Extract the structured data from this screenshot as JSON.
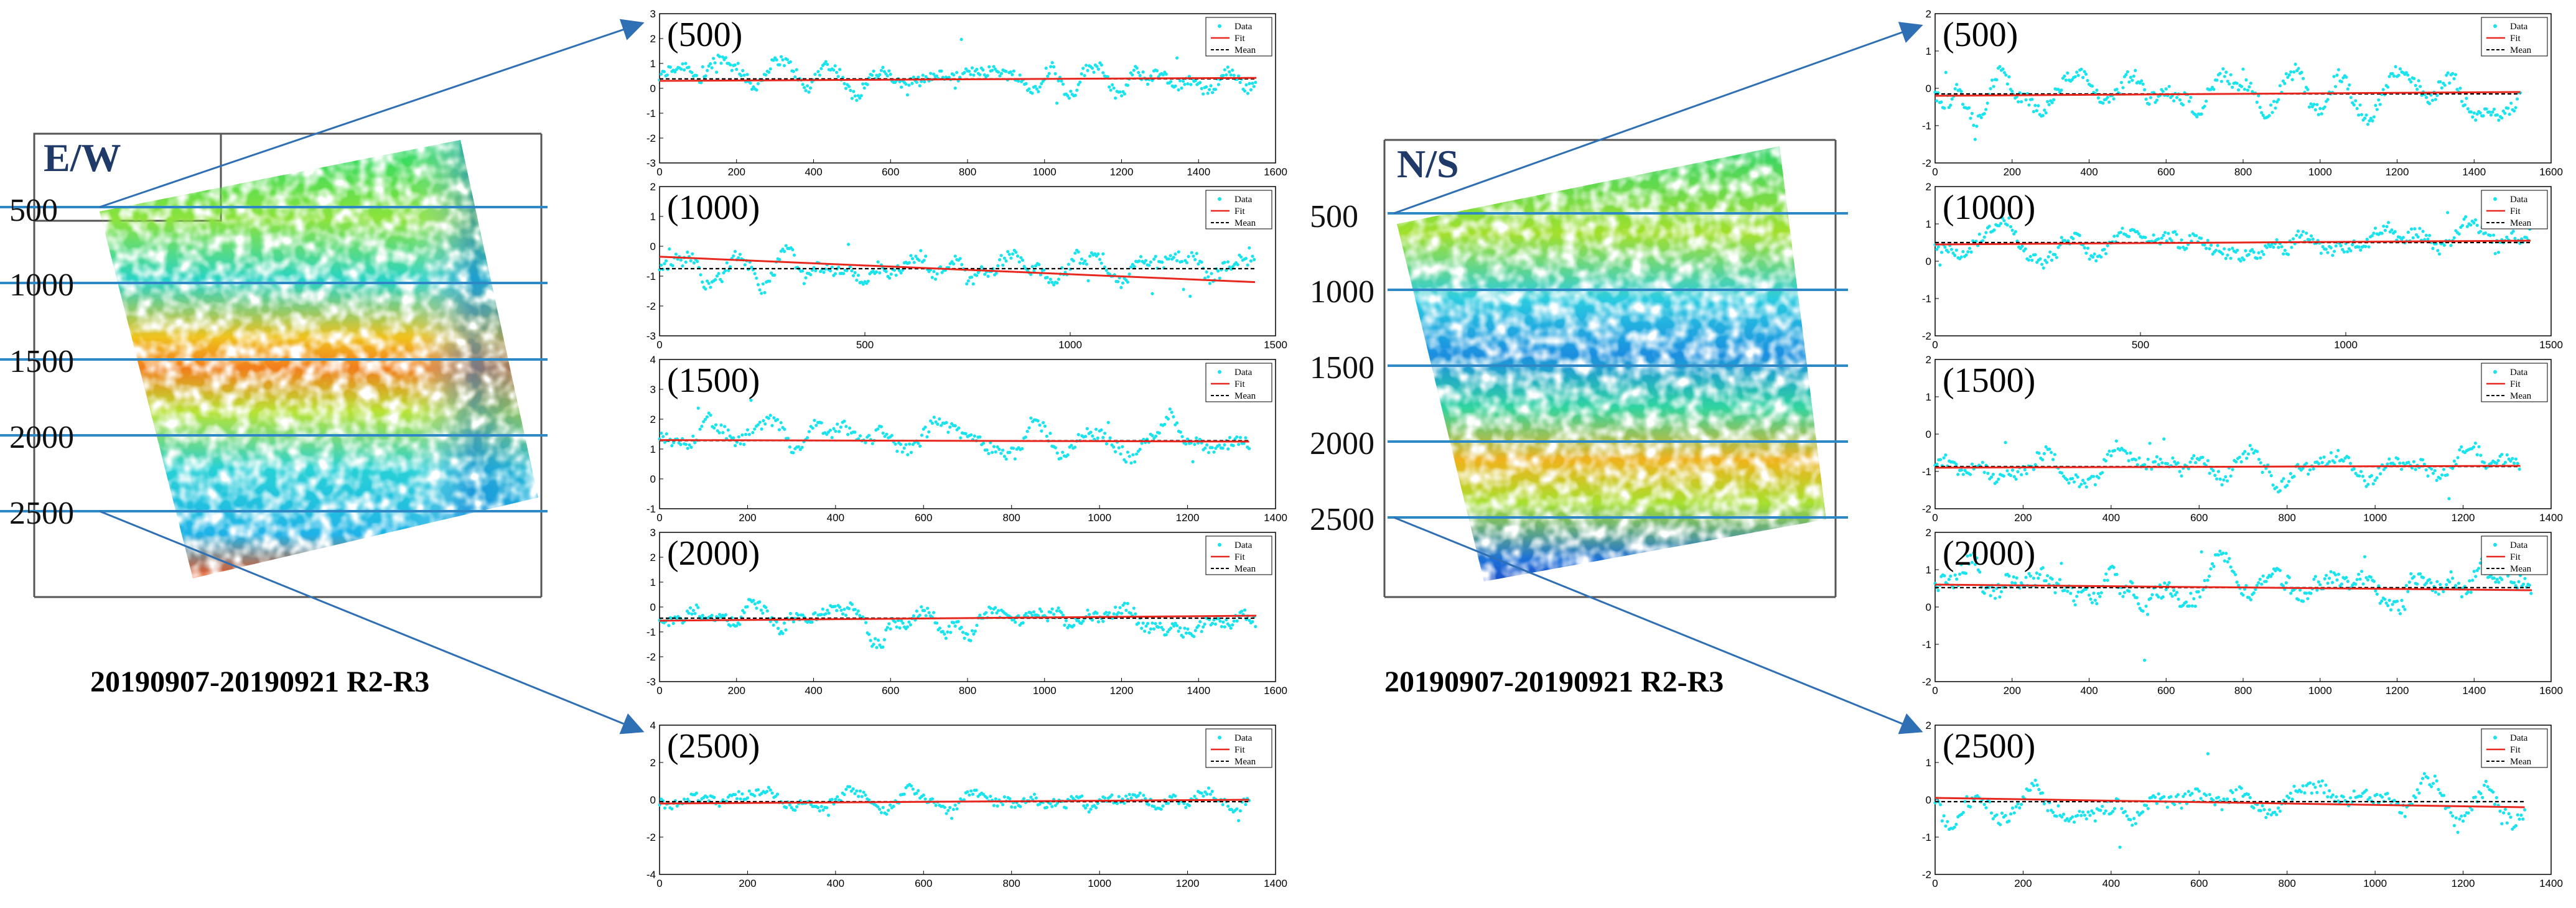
{
  "left_map": {
    "title": "E/W",
    "rows": [
      "500",
      "1000",
      "1500",
      "2000",
      "2500"
    ],
    "caption": "20190907-20190921 R2-R3"
  },
  "right_map": {
    "title": "N/S",
    "rows": [
      "500",
      "1000",
      "1500",
      "2000",
      "2500"
    ],
    "caption": "20190907-20190921 R2-R3"
  },
  "colors": {
    "data": "#19e3ec",
    "fit": "#e8281e",
    "mean": "#000000",
    "row_line": "#2f88c6",
    "arrow": "#2f6fb4",
    "frame": "#555555"
  },
  "legend": [
    "Data",
    "Fit",
    "Mean"
  ],
  "chart_data": [
    {
      "type": "scatter",
      "group": "E/W",
      "label": "(500)",
      "xlim": [
        0,
        1600
      ],
      "ylim": [
        -3,
        3
      ],
      "xticks": [
        "0",
        "200",
        "400",
        "600",
        "800",
        "1000",
        "1200",
        "1400",
        "1600"
      ],
      "yticks": [
        "-3",
        "-2",
        "-1",
        "0",
        "1",
        "2",
        "3"
      ],
      "n_points": 1550,
      "data_mean": 0.4,
      "data_spread": 0.55,
      "fit": {
        "y_start": 0.3,
        "y_end": 0.42
      },
      "mean": 0.38
    },
    {
      "type": "scatter",
      "group": "E/W",
      "label": "(1000)",
      "xlim": [
        0,
        1500
      ],
      "ylim": [
        -3,
        2
      ],
      "xticks": [
        "0",
        "500",
        "1000",
        "1500"
      ],
      "yticks": [
        "-3",
        "-2",
        "-1",
        "0",
        "1",
        "2"
      ],
      "n_points": 1450,
      "data_mean": -0.7,
      "data_spread": 0.5,
      "fit": {
        "y_start": -0.35,
        "y_end": -1.2
      },
      "mean": -0.75
    },
    {
      "type": "scatter",
      "group": "E/W",
      "label": "(1500)",
      "xlim": [
        0,
        1400
      ],
      "ylim": [
        -1,
        4
      ],
      "xticks": [
        "0",
        "200",
        "400",
        "600",
        "800",
        "1000",
        "1200",
        "1400"
      ],
      "yticks": [
        "-1",
        "0",
        "1",
        "2",
        "3",
        "4"
      ],
      "n_points": 1340,
      "data_mean": 1.3,
      "data_spread": 0.5,
      "fit": {
        "y_start": 1.3,
        "y_end": 1.25
      },
      "mean": 1.28
    },
    {
      "type": "scatter",
      "group": "E/W",
      "label": "(2000)",
      "xlim": [
        0,
        1600
      ],
      "ylim": [
        -3,
        3
      ],
      "xticks": [
        "0",
        "200",
        "400",
        "600",
        "800",
        "1000",
        "1200",
        "1400",
        "1600"
      ],
      "yticks": [
        "-3",
        "-2",
        "-1",
        "0",
        "1",
        "2",
        "3"
      ],
      "n_points": 1550,
      "data_mean": -0.45,
      "data_spread": 0.55,
      "fit": {
        "y_start": -0.55,
        "y_end": -0.35
      },
      "mean": -0.45
    },
    {
      "type": "scatter",
      "group": "E/W",
      "label": "(2500)",
      "xlim": [
        0,
        1400
      ],
      "ylim": [
        -4,
        4
      ],
      "xticks": [
        "0",
        "200",
        "400",
        "600",
        "800",
        "1000",
        "1200",
        "1400"
      ],
      "yticks": [
        "-4",
        "-2",
        "0",
        "2",
        "4"
      ],
      "n_points": 1340,
      "data_mean": -0.1,
      "data_spread": 0.55,
      "fit": {
        "y_start": -0.2,
        "y_end": 0.0
      },
      "mean": -0.1
    },
    {
      "type": "scatter",
      "group": "N/S",
      "label": "(500)",
      "xlim": [
        0,
        1600
      ],
      "ylim": [
        -2,
        2
      ],
      "xticks": [
        "0",
        "200",
        "400",
        "600",
        "800",
        "1000",
        "1200",
        "1400",
        "1600"
      ],
      "yticks": [
        "-2",
        "-1",
        "0",
        "1",
        "2"
      ],
      "n_points": 1520,
      "data_mean": -0.15,
      "data_spread": 0.45,
      "fit": {
        "y_start": -0.2,
        "y_end": -0.1
      },
      "mean": -0.15
    },
    {
      "type": "scatter",
      "group": "N/S",
      "label": "(1000)",
      "xlim": [
        0,
        1500
      ],
      "ylim": [
        -2,
        2
      ],
      "xticks": [
        "0",
        "500",
        "1000",
        "1500"
      ],
      "yticks": [
        "-2",
        "-1",
        "0",
        "1",
        "2"
      ],
      "n_points": 1450,
      "data_mean": 0.5,
      "data_spread": 0.4,
      "fit": {
        "y_start": 0.45,
        "y_end": 0.55
      },
      "mean": 0.5
    },
    {
      "type": "scatter",
      "group": "N/S",
      "label": "(1500)",
      "xlim": [
        0,
        1400
      ],
      "ylim": [
        -2,
        2
      ],
      "xticks": [
        "0",
        "200",
        "400",
        "600",
        "800",
        "1000",
        "1200",
        "1400"
      ],
      "yticks": [
        "-2",
        "-1",
        "0",
        "1",
        "2"
      ],
      "n_points": 1330,
      "data_mean": -0.85,
      "data_spread": 0.4,
      "fit": {
        "y_start": -0.9,
        "y_end": -0.85
      },
      "mean": -0.87
    },
    {
      "type": "scatter",
      "group": "N/S",
      "label": "(2000)",
      "xlim": [
        0,
        1600
      ],
      "ylim": [
        -2,
        2
      ],
      "xticks": [
        "0",
        "200",
        "400",
        "600",
        "800",
        "1000",
        "1200",
        "1400",
        "1600"
      ],
      "yticks": [
        "-2",
        "-1",
        "0",
        "1",
        "2"
      ],
      "n_points": 1550,
      "data_mean": 0.55,
      "data_spread": 0.5,
      "fit": {
        "y_start": 0.6,
        "y_end": 0.45
      },
      "mean": 0.52
    },
    {
      "type": "scatter",
      "group": "N/S",
      "label": "(2500)",
      "xlim": [
        0,
        1400
      ],
      "ylim": [
        -2,
        2
      ],
      "xticks": [
        "0",
        "200",
        "400",
        "600",
        "800",
        "1000",
        "1200",
        "1400"
      ],
      "yticks": [
        "-2",
        "-1",
        "0",
        "1",
        "2"
      ],
      "n_points": 1340,
      "data_mean": 0.0,
      "data_spread": 0.45,
      "fit": {
        "y_start": 0.05,
        "y_end": -0.2
      },
      "mean": -0.05
    }
  ]
}
